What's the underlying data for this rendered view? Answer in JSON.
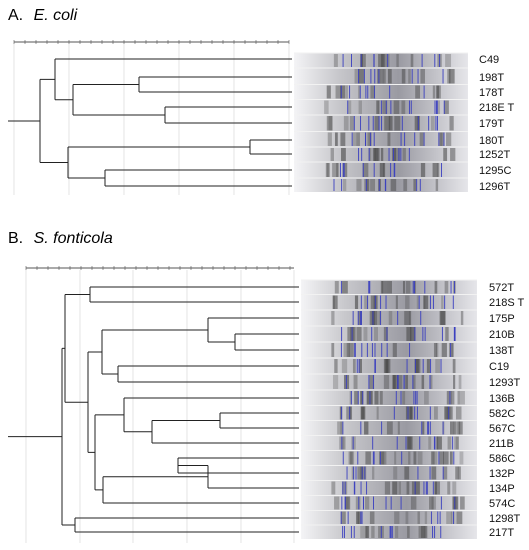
{
  "panels": [
    {
      "letter": "A.",
      "organism": "E. coli",
      "samples": [
        "C49",
        "198T",
        "178T",
        "218E T",
        "179T",
        "180T",
        "1252T",
        "1295C",
        "1296T"
      ],
      "scale_ticks": [
        "",
        "",
        "",
        "",
        "",
        ""
      ]
    },
    {
      "letter": "B.",
      "organism": "S. fonticola",
      "samples": [
        "572T",
        "218S T",
        "175P",
        "210B",
        "138T",
        "C19",
        "1293T",
        "136B",
        "582C",
        "567C",
        "211B",
        "586C",
        "132P",
        "134P",
        "574C",
        "1298T",
        "217T"
      ],
      "scale_ticks": [
        "",
        "",
        "",
        "",
        "",
        ""
      ]
    }
  ],
  "colors": {
    "tree_line": "#222222",
    "gridline": "#dddddd",
    "gel_band": "#3a3fc0",
    "gel_background": "#cfcfd2"
  }
}
